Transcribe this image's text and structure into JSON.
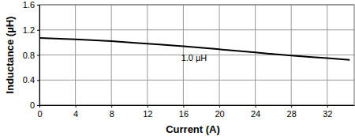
{
  "chart_data": {
    "type": "line",
    "x_label": "Current (A)",
    "y_label": "Inductance (µH)",
    "annotations": [
      "1.0 µH"
    ],
    "x": [
      0,
      4,
      8,
      12,
      16,
      20,
      24,
      28,
      32,
      34.5
    ],
    "series": [
      {
        "color": "#000000",
        "values": [
          1.07,
          1.05,
          1.02,
          0.98,
          0.94,
          0.89,
          0.84,
          0.79,
          0.75,
          0.72
        ]
      }
    ],
    "xlim": [
      0,
      35
    ],
    "xticks": [
      0,
      4,
      8,
      12,
      16,
      20,
      24,
      28,
      32
    ],
    "ylim": [
      0,
      1.6
    ],
    "yticks": [
      0,
      0.4,
      0.8,
      1.2,
      1.6
    ],
    "grid": true
  }
}
